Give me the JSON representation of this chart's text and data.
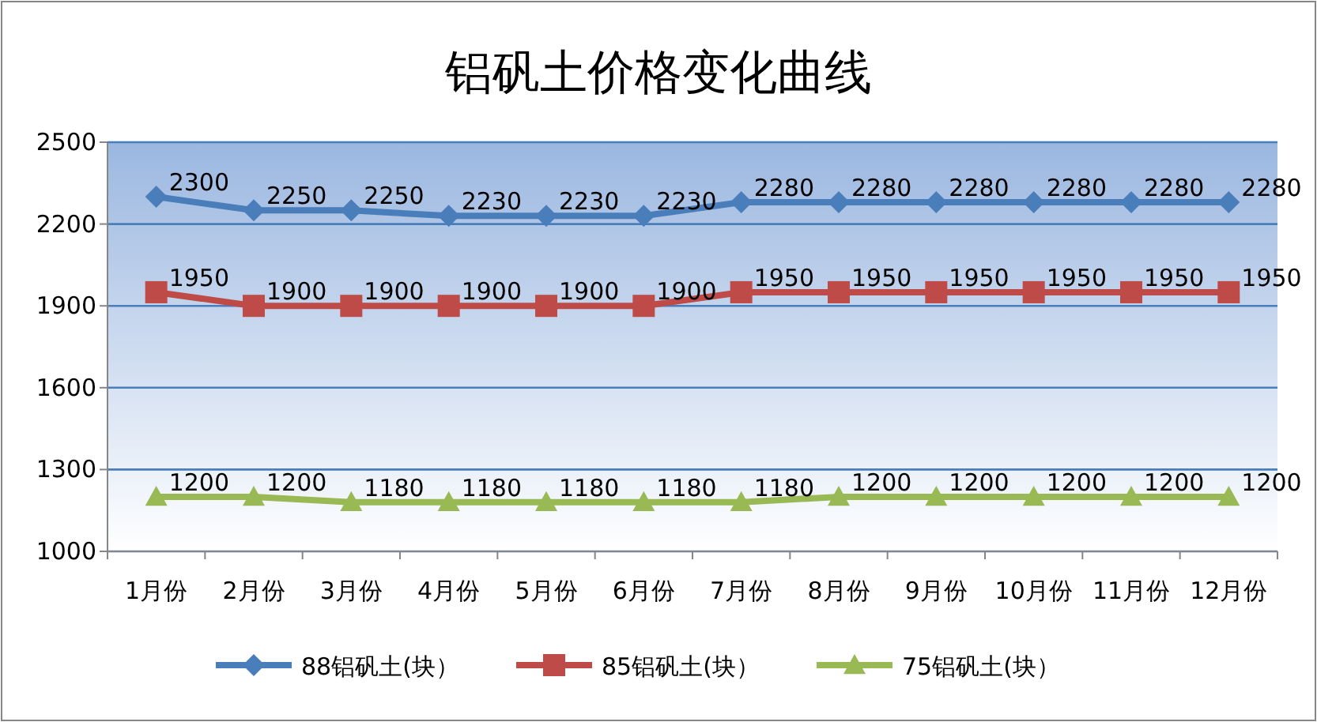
{
  "chart_data": {
    "type": "line",
    "title": "铝矾土价格变化曲线",
    "categories": [
      "1月份",
      "2月份",
      "3月份",
      "4月份",
      "5月份",
      "6月份",
      "7月份",
      "8月份",
      "9月份",
      "10月份",
      "11月份",
      "12月份"
    ],
    "series": [
      {
        "name": "88铝矾土(块）",
        "color": "#4a7ebb",
        "marker": "diamond",
        "values": [
          2300,
          2250,
          2250,
          2230,
          2230,
          2230,
          2280,
          2280,
          2280,
          2280,
          2280,
          2280
        ]
      },
      {
        "name": "85铝矾土(块）",
        "color": "#be4b48",
        "marker": "square",
        "values": [
          1950,
          1900,
          1900,
          1900,
          1900,
          1900,
          1950,
          1950,
          1950,
          1950,
          1950,
          1950
        ]
      },
      {
        "name": "75铝矾土(块）",
        "color": "#98b954",
        "marker": "triangle",
        "values": [
          1200,
          1200,
          1180,
          1180,
          1180,
          1180,
          1180,
          1200,
          1200,
          1200,
          1200,
          1200
        ]
      }
    ],
    "ylim": [
      1000,
      2500
    ],
    "yticks": [
      1000,
      1300,
      1600,
      1900,
      2200,
      2500
    ],
    "grid": "y",
    "legend": "bottom",
    "data_labels": true
  }
}
